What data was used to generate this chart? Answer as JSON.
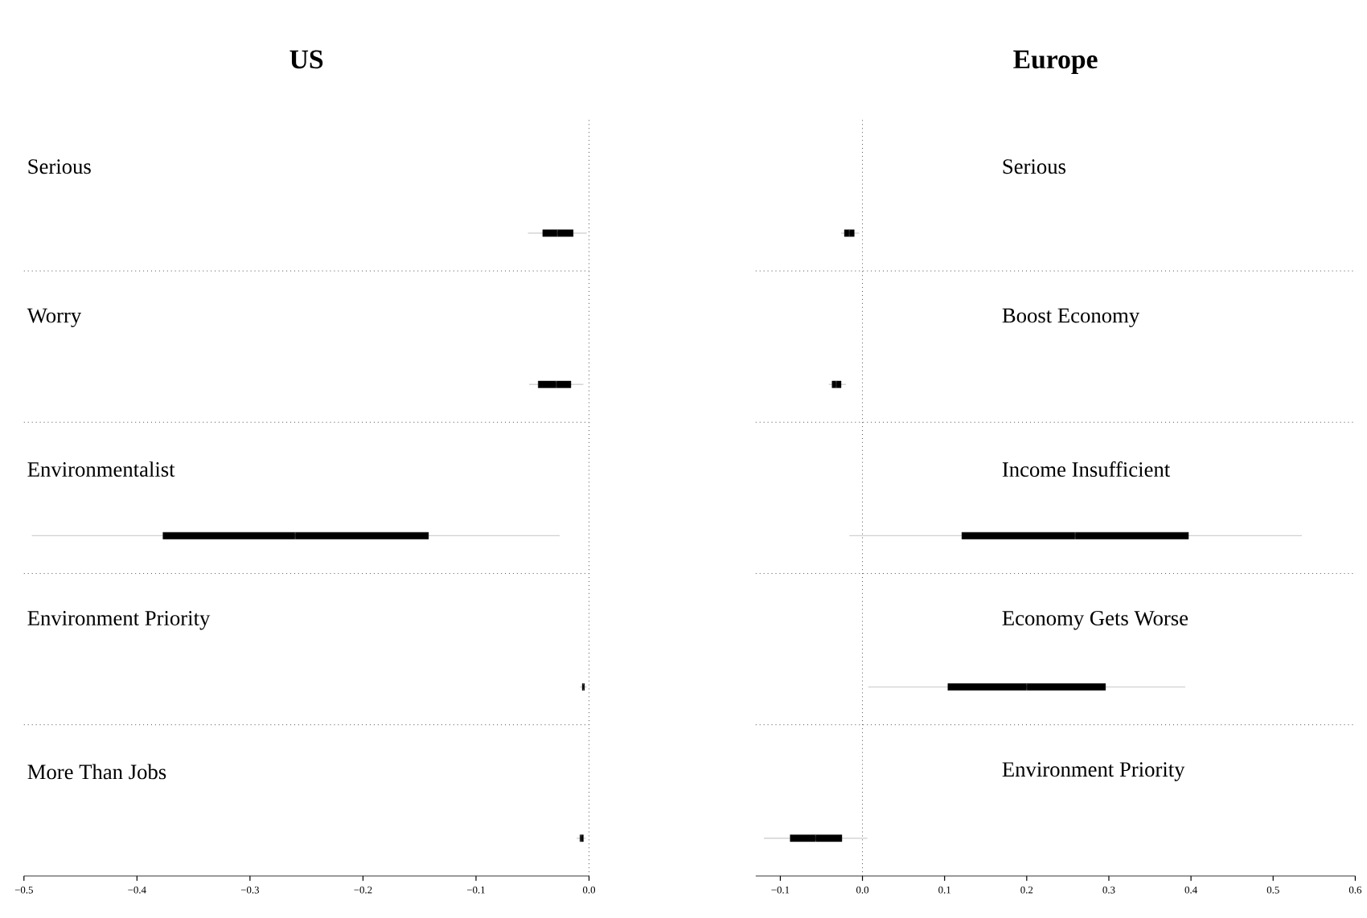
{
  "chart_data": [
    {
      "type": "box",
      "title": "US",
      "orientation": "horizontal",
      "categories": [
        "Serious",
        "Worry",
        "Environmentalist",
        "Environment Priority",
        "More Than Jobs"
      ],
      "boxes": [
        {
          "low": -0.054,
          "q1": -0.041,
          "median": -0.028,
          "q3": -0.014,
          "high": -0.002
        },
        {
          "low": -0.053,
          "q1": -0.045,
          "median": -0.029,
          "q3": -0.016,
          "high": -0.005
        },
        {
          "low": -0.493,
          "q1": -0.377,
          "median": -0.26,
          "q3": -0.142,
          "high": -0.026
        },
        {
          "low": -0.008,
          "q1": -0.006,
          "median": -0.005,
          "q3": -0.004,
          "high": -0.002
        },
        {
          "low": -0.011,
          "q1": -0.008,
          "median": -0.007,
          "q3": -0.005,
          "high": -0.003
        }
      ],
      "xlim": [
        -0.5,
        0.0
      ],
      "xticks": [
        {
          "value": -0.5,
          "label": "−0.5"
        },
        {
          "value": -0.4,
          "label": "−0.4"
        },
        {
          "value": -0.3,
          "label": "−0.3"
        },
        {
          "value": -0.2,
          "label": "−0.2"
        },
        {
          "value": -0.1,
          "label": "−0.1"
        },
        {
          "value": 0.0,
          "label": "0.0"
        }
      ],
      "ref_lines": [
        {
          "axis": "x",
          "value": 0,
          "line_style": "dotted"
        }
      ]
    },
    {
      "type": "box",
      "title": "Europe",
      "orientation": "horizontal",
      "categories": [
        "Serious",
        "Boost Economy",
        "Income Insufficient",
        "Economy Gets Worse",
        "Environment Priority"
      ],
      "boxes": [
        {
          "low": -0.026,
          "q1": -0.022,
          "median": -0.016,
          "q3": -0.01,
          "high": -0.004
        },
        {
          "low": -0.041,
          "q1": -0.037,
          "median": -0.032,
          "q3": -0.026,
          "high": -0.02
        },
        {
          "low": -0.016,
          "q1": 0.121,
          "median": 0.259,
          "q3": 0.397,
          "high": 0.535
        },
        {
          "low": 0.007,
          "q1": 0.104,
          "median": 0.2,
          "q3": 0.296,
          "high": 0.393
        },
        {
          "low": -0.12,
          "q1": -0.088,
          "median": -0.057,
          "q3": -0.025,
          "high": 0.006
        }
      ],
      "xlim": [
        -0.13,
        0.6
      ],
      "xticks": [
        {
          "value": -0.1,
          "label": "−0.1"
        },
        {
          "value": 0.0,
          "label": "0.0"
        },
        {
          "value": 0.1,
          "label": "0.1"
        },
        {
          "value": 0.2,
          "label": "0.2"
        },
        {
          "value": 0.3,
          "label": "0.3"
        },
        {
          "value": 0.4,
          "label": "0.4"
        },
        {
          "value": 0.5,
          "label": "0.5"
        },
        {
          "value": 0.6,
          "label": "0.6"
        }
      ],
      "ref_lines": [
        {
          "axis": "x",
          "value": 0,
          "line_style": "dotted"
        }
      ]
    }
  ]
}
